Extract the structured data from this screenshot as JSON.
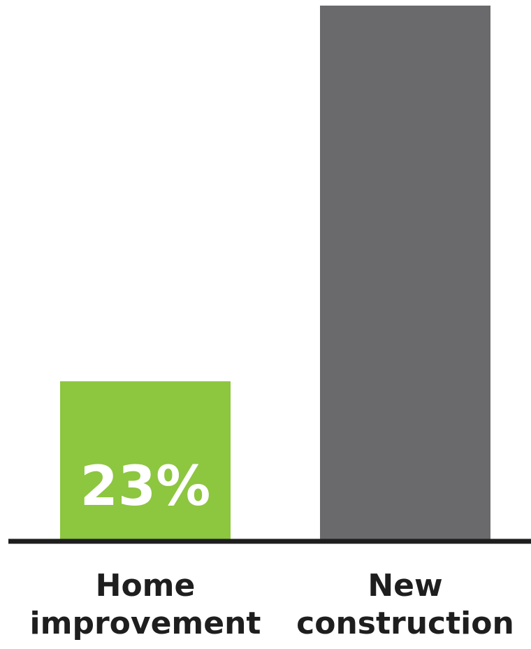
{
  "chart_data": {
    "type": "bar",
    "categories": [
      [
        "Home",
        "improvement"
      ],
      [
        "New",
        "construction"
      ]
    ],
    "values": [
      23,
      77
    ],
    "data_labels": [
      "23%",
      ""
    ],
    "colors": [
      "#8dc63f",
      "#6a6a6c"
    ],
    "baseline_color": "#1e1e1e",
    "ylim": [
      0,
      77
    ],
    "grid": false,
    "title": "",
    "xlabel": "",
    "ylabel": ""
  }
}
